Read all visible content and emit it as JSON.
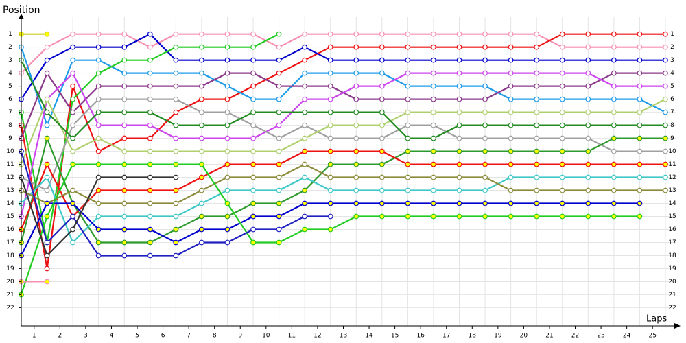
{
  "chart_data": {
    "type": "line",
    "y_label": "Position",
    "x_label": "Laps",
    "x": [
      0,
      1,
      2,
      3,
      4,
      5,
      6,
      7,
      8,
      9,
      10,
      11,
      12,
      13,
      14,
      15,
      16,
      17,
      18,
      19,
      20,
      21,
      22,
      23,
      24,
      25
    ],
    "xlim": [
      0,
      25.4
    ],
    "ylim": [
      23.4,
      -0.3
    ],
    "yticks": [
      1,
      2,
      3,
      4,
      5,
      6,
      7,
      8,
      9,
      10,
      11,
      12,
      13,
      14,
      15,
      16,
      17,
      18,
      19,
      20,
      21,
      22
    ],
    "xticks": [
      {
        "value": 0.5,
        "label": "1"
      },
      {
        "value": 1.5,
        "label": "2"
      },
      {
        "value": 2.5,
        "label": "3"
      },
      {
        "value": 3.5,
        "label": "4"
      },
      {
        "value": 4.5,
        "label": "5"
      },
      {
        "value": 5.5,
        "label": "6"
      },
      {
        "value": 6.5,
        "label": "7"
      },
      {
        "value": 7.5,
        "label": "8"
      },
      {
        "value": 8.5,
        "label": "9"
      },
      {
        "value": 9.5,
        "label": "10"
      },
      {
        "value": 10.5,
        "label": "11"
      },
      {
        "value": 11.5,
        "label": "12"
      },
      {
        "value": 12.5,
        "label": "13"
      },
      {
        "value": 13.5,
        "label": "14"
      },
      {
        "value": 14.5,
        "label": "15"
      },
      {
        "value": 15.5,
        "label": "16"
      },
      {
        "value": 16.5,
        "label": "17"
      },
      {
        "value": 17.5,
        "label": "18"
      },
      {
        "value": 18.5,
        "label": "19"
      },
      {
        "value": 19.5,
        "label": "20"
      },
      {
        "value": 20.5,
        "label": "21"
      },
      {
        "value": 21.5,
        "label": "22"
      },
      {
        "value": 22.5,
        "label": "23"
      },
      {
        "value": 23.5,
        "label": "24"
      },
      {
        "value": 24.5,
        "label": "25"
      }
    ],
    "grid": true,
    "series": [
      {
        "color": "#f790b0",
        "marker_fill": "#ffffff",
        "values": [
          4,
          2,
          1,
          1,
          1,
          2,
          1,
          1,
          1,
          1,
          2,
          1,
          1,
          1,
          1,
          1,
          1,
          1,
          1,
          1,
          1,
          2,
          2,
          2,
          2,
          2
        ]
      },
      {
        "color": "#ee1111",
        "marker_fill": "#ffffff",
        "values": [
          8,
          19,
          5,
          10,
          9,
          9,
          7,
          6,
          6,
          5,
          4,
          3,
          2,
          2,
          2,
          2,
          2,
          2,
          2,
          2,
          2,
          1,
          1,
          1,
          1,
          1
        ]
      },
      {
        "color": "#0000cc",
        "marker_fill": "#ffffff",
        "values": [
          6,
          3,
          2,
          2,
          2,
          1,
          3,
          3,
          3,
          3,
          3,
          2,
          3,
          3,
          3,
          3,
          3,
          3,
          3,
          3,
          3,
          3,
          3,
          3,
          3,
          3
        ]
      },
      {
        "color": "#1e9be8",
        "marker_fill": "#ffffff",
        "values": [
          2,
          8,
          3,
          3,
          4,
          4,
          4,
          4,
          5,
          6,
          6,
          4,
          4,
          4,
          4,
          5,
          5,
          5,
          5,
          6,
          6,
          6,
          6,
          6,
          6,
          7
        ]
      },
      {
        "color": "#22cc22",
        "marker_fill": "#ffffff",
        "values": [
          7,
          17,
          6,
          4,
          3,
          3,
          2,
          2,
          2,
          2,
          1,
          null,
          null,
          null,
          null,
          null,
          null,
          null,
          null,
          null,
          null,
          null,
          null,
          null,
          null,
          null
        ]
      },
      {
        "color": "#8b3a8b",
        "marker_fill": "#ffffff",
        "values": [
          9,
          4,
          7,
          5,
          5,
          5,
          5,
          5,
          4,
          4,
          5,
          5,
          5,
          6,
          6,
          6,
          6,
          6,
          6,
          5,
          5,
          5,
          5,
          4,
          4,
          4
        ]
      },
      {
        "color": "#cc44ee",
        "marker_fill": "#ffffff",
        "values": [
          15,
          6,
          4,
          8,
          8,
          8,
          9,
          9,
          9,
          9,
          8,
          6,
          6,
          5,
          5,
          4,
          4,
          4,
          4,
          4,
          4,
          4,
          4,
          5,
          5,
          5
        ]
      },
      {
        "color": "#a0a0a0",
        "marker_fill": "#ffffff",
        "values": [
          12,
          13,
          8,
          6,
          6,
          6,
          6,
          7,
          7,
          8,
          9,
          8,
          9,
          9,
          9,
          8,
          8,
          9,
          9,
          9,
          9,
          9,
          9,
          10,
          10,
          10
        ]
      },
      {
        "color": "#b0d070",
        "marker_fill": "#ffffff",
        "values": [
          11,
          6,
          10,
          9,
          10,
          10,
          10,
          10,
          10,
          10,
          10,
          9,
          8,
          8,
          8,
          7,
          7,
          7,
          7,
          7,
          7,
          7,
          7,
          7,
          7,
          6
        ]
      },
      {
        "color": "#228b22",
        "marker_fill": "#ffffff",
        "values": [
          3,
          7,
          9,
          7,
          7,
          7,
          8,
          8,
          8,
          7,
          7,
          7,
          7,
          7,
          7,
          9,
          9,
          8,
          8,
          8,
          8,
          8,
          8,
          8,
          8,
          8
        ]
      },
      {
        "color": "#2e9a2e",
        "marker_fill": "#ffff00",
        "values": [
          17,
          9,
          14,
          17,
          17,
          17,
          16,
          15,
          15,
          14,
          14,
          13,
          11,
          11,
          11,
          10,
          10,
          10,
          10,
          10,
          10,
          10,
          10,
          9,
          9,
          9
        ]
      },
      {
        "color": "#ee1111",
        "marker_fill": "#ffff00",
        "values": [
          16,
          11,
          15,
          13,
          13,
          13,
          13,
          12,
          11,
          11,
          11,
          10,
          10,
          10,
          10,
          11,
          11,
          11,
          11,
          11,
          11,
          11,
          11,
          11,
          11,
          11
        ]
      },
      {
        "color": "#40c8c8",
        "marker_fill": "#ffffff",
        "values": [
          14,
          12,
          17,
          15,
          15,
          15,
          15,
          14,
          13,
          13,
          13,
          12,
          13,
          13,
          13,
          13,
          13,
          13,
          13,
          12,
          12,
          12,
          12,
          12,
          12,
          12
        ]
      },
      {
        "color": "#8b8b3a",
        "marker_fill": "#ffffff",
        "values": [
          13,
          14,
          13,
          14,
          14,
          14,
          14,
          13,
          12,
          12,
          12,
          11,
          12,
          12,
          12,
          12,
          12,
          12,
          12,
          13,
          13,
          13,
          13,
          13,
          13,
          13
        ]
      },
      {
        "color": "#0000cc",
        "marker_fill": "#ffff00",
        "values": [
          18,
          14,
          14,
          16,
          16,
          16,
          17,
          16,
          16,
          15,
          15,
          14,
          14,
          14,
          14,
          14,
          14,
          14,
          14,
          14,
          14,
          14,
          14,
          14,
          14,
          null
        ]
      },
      {
        "color": "#22cc22",
        "marker_fill": "#ffff00",
        "values": [
          21,
          15,
          11,
          11,
          11,
          11,
          11,
          11,
          14,
          17,
          17,
          16,
          16,
          15,
          15,
          15,
          15,
          15,
          15,
          15,
          15,
          15,
          15,
          15,
          15,
          null
        ]
      },
      {
        "color": "#2020c0",
        "marker_fill": "#ffffff",
        "values": [
          10,
          17,
          15,
          18,
          18,
          18,
          18,
          17,
          17,
          16,
          16,
          15,
          15,
          null,
          null,
          null,
          null,
          null,
          null,
          null,
          null,
          null,
          null,
          null,
          null,
          null
        ]
      },
      {
        "color": "#333333",
        "marker_fill": "#ffffff",
        "values": [
          12,
          18,
          16,
          12,
          12,
          12,
          12,
          null,
          null,
          null,
          null,
          null,
          null,
          null,
          null,
          null,
          null,
          null,
          null,
          null,
          null,
          null,
          null,
          null,
          null,
          null
        ]
      },
      {
        "color": "#cccc22",
        "marker_fill": "#ffff00",
        "values": [
          1,
          1,
          null,
          null,
          null,
          null,
          null,
          null,
          null,
          null,
          null,
          null,
          null,
          null,
          null,
          null,
          null,
          null,
          null,
          null,
          null,
          null,
          null,
          null,
          null,
          null
        ]
      },
      {
        "color": "#f790b0",
        "marker_fill": "#ffff00",
        "values": [
          20,
          20,
          null,
          null,
          null,
          null,
          null,
          null,
          null,
          null,
          null,
          null,
          null,
          null,
          null,
          null,
          null,
          null,
          null,
          null,
          null,
          null,
          null,
          null,
          null,
          null
        ]
      }
    ]
  }
}
